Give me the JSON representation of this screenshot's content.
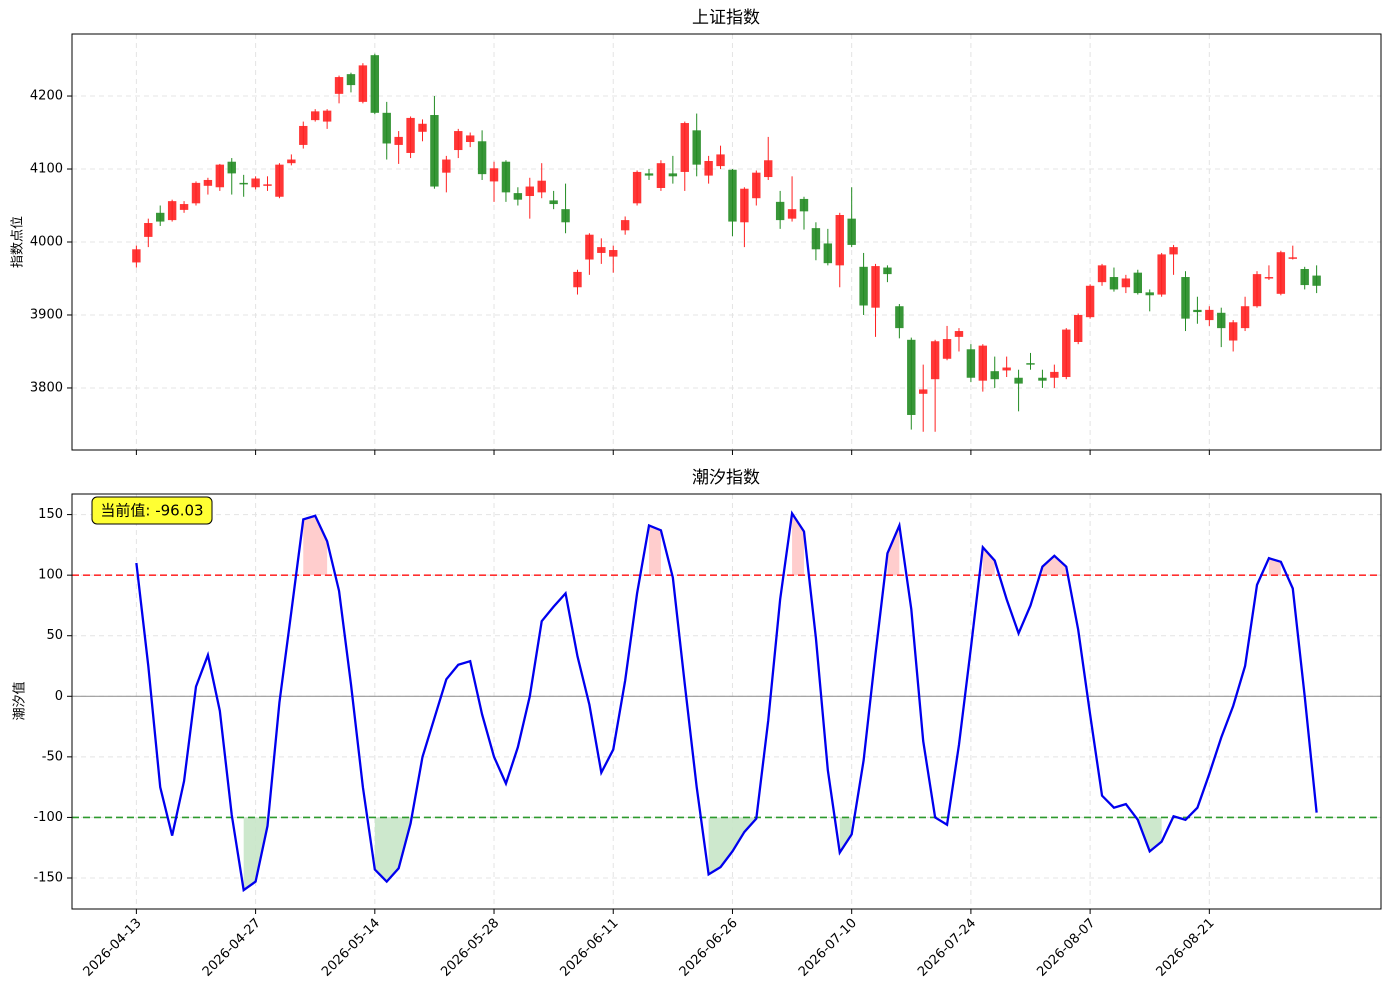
{
  "chart_data": [
    {
      "type": "candlestick",
      "title": "上证指数",
      "ylabel": "指数点位",
      "up_color": "#ff2020",
      "down_color": "#228b22",
      "open": [
        3972,
        4007,
        4040,
        4030,
        4044,
        4053,
        4077,
        4075,
        4110,
        4081,
        4075,
        4078,
        4062,
        4108,
        4133,
        4167,
        4165,
        4203,
        4230,
        4192,
        4256,
        4177,
        4133,
        4122,
        4151,
        4174,
        4095,
        4126,
        4137,
        4138,
        4083,
        4110,
        4067,
        4063,
        4068,
        4057,
        4045,
        3938,
        3976,
        3985,
        3980,
        4016,
        4053,
        4094,
        4074,
        4094,
        4096,
        4153,
        4091,
        4104,
        4099,
        4027,
        4060,
        4089,
        4055,
        4032,
        4059,
        4019,
        3998,
        3968,
        4032,
        3966,
        3910,
        3965,
        3912,
        3866,
        3792,
        3812,
        3840,
        3870,
        3853,
        3810,
        3823,
        3824,
        3814,
        3834,
        3814,
        3814,
        3815,
        3863,
        3897,
        3945,
        3952,
        3938,
        3958,
        3931,
        3928,
        3983,
        3952,
        3907,
        3893,
        3903,
        3865,
        3882,
        3912,
        3950,
        3929,
        3978,
        3963,
        3954
      ],
      "close": [
        3990,
        4026,
        4028,
        4056,
        4052,
        4081,
        4085,
        4106,
        4094,
        4080,
        4087,
        4079,
        4106,
        4113,
        4159,
        4179,
        4180,
        4226,
        4215,
        4242,
        4177,
        4135,
        4144,
        4170,
        4162,
        4076,
        4113,
        4152,
        4146,
        4093,
        4101,
        4068,
        4058,
        4076,
        4084,
        4052,
        4027,
        3959,
        4010,
        3993,
        3989,
        4030,
        4096,
        4091,
        4108,
        4090,
        4163,
        4106,
        4111,
        4120,
        4028,
        4073,
        4095,
        4112,
        4030,
        4045,
        4042,
        3990,
        3971,
        4037,
        3996,
        3913,
        3967,
        3956,
        3882,
        3763,
        3798,
        3864,
        3867,
        3878,
        3814,
        3858,
        3812,
        3828,
        3806,
        3832,
        3810,
        3822,
        3880,
        3900,
        3940,
        3968,
        3935,
        3950,
        3930,
        3927,
        3983,
        3993,
        3895,
        3904,
        3907,
        3882,
        3890,
        3912,
        3956,
        3952,
        3986,
        3979,
        3941,
        3940
      ],
      "high": [
        3995,
        4032,
        4050,
        4058,
        4056,
        4083,
        4088,
        4107,
        4115,
        4092,
        4090,
        4090,
        4108,
        4120,
        4165,
        4182,
        4182,
        4228,
        4232,
        4245,
        4258,
        4192,
        4152,
        4172,
        4168,
        4200,
        4118,
        4155,
        4150,
        4153,
        4110,
        4112,
        4075,
        4088,
        4108,
        4070,
        4080,
        3962,
        4012,
        4005,
        3995,
        4035,
        4098,
        4100,
        4112,
        4118,
        4165,
        4176,
        4118,
        4132,
        4100,
        4075,
        4098,
        4144,
        4070,
        4090,
        4062,
        4027,
        4018,
        4040,
        4075,
        3985,
        3970,
        3968,
        3915,
        3869,
        3832,
        3866,
        3885,
        3882,
        3860,
        3860,
        3843,
        3843,
        3825,
        3848,
        3825,
        3832,
        3882,
        3902,
        3942,
        3970,
        3965,
        3955,
        3962,
        3935,
        3985,
        3996,
        3960,
        3925,
        3912,
        3910,
        3893,
        3925,
        3960,
        3968,
        3988,
        3995,
        3966,
        3968
      ],
      "low": [
        3965,
        3993,
        4022,
        4028,
        4040,
        4050,
        4065,
        4070,
        4065,
        4062,
        4072,
        4070,
        4060,
        4105,
        4128,
        4165,
        4155,
        4190,
        4205,
        4190,
        4175,
        4113,
        4107,
        4115,
        4138,
        4073,
        4068,
        4115,
        4130,
        4085,
        4055,
        4055,
        4050,
        4032,
        4060,
        4045,
        4012,
        3928,
        3955,
        3970,
        3958,
        4010,
        4050,
        4085,
        4070,
        4080,
        4070,
        4090,
        4080,
        4100,
        4008,
        3993,
        4050,
        4085,
        4018,
        4028,
        4017,
        3975,
        3968,
        3938,
        3993,
        3900,
        3870,
        3945,
        3868,
        3743,
        3740,
        3740,
        3838,
        3850,
        3808,
        3795,
        3800,
        3815,
        3768,
        3825,
        3800,
        3800,
        3812,
        3860,
        3895,
        3940,
        3932,
        3930,
        3928,
        3905,
        3925,
        3955,
        3878,
        3888,
        3885,
        3856,
        3850,
        3878,
        3910,
        3948,
        3927,
        3976,
        3935,
        3930
      ],
      "xlim": [
        -5.4,
        104.4
      ],
      "ylim": [
        3715,
        4285
      ],
      "yticks": [
        3800,
        3900,
        4000,
        4100,
        4200
      ],
      "grid": true
    },
    {
      "type": "line",
      "title": "潮汐指数",
      "ylabel": "潮汐值",
      "color": "#0000ee",
      "annotation": "当前值: -96.03",
      "categories": [
        "2026-04-13",
        null,
        null,
        null,
        null,
        null,
        null,
        null,
        null,
        null,
        "2026-04-27",
        null,
        null,
        null,
        null,
        null,
        null,
        null,
        null,
        null,
        "2026-05-14",
        null,
        null,
        null,
        null,
        null,
        null,
        null,
        null,
        null,
        "2026-05-28",
        null,
        null,
        null,
        null,
        null,
        null,
        null,
        null,
        null,
        "2026-06-11",
        null,
        null,
        null,
        null,
        null,
        null,
        null,
        null,
        null,
        "2026-06-26",
        null,
        null,
        null,
        null,
        null,
        null,
        null,
        null,
        null,
        "2026-07-10",
        null,
        null,
        null,
        null,
        null,
        null,
        null,
        null,
        null,
        "2026-07-24",
        null,
        null,
        null,
        null,
        null,
        null,
        null,
        null,
        null,
        "2026-08-07",
        null,
        null,
        null,
        null,
        null,
        null,
        null,
        null,
        null,
        "2026-08-21",
        null,
        null,
        null,
        null,
        null,
        null,
        null,
        null,
        null
      ],
      "values": [
        110,
        25,
        -75,
        -115,
        -70,
        8,
        34,
        -12,
        -98,
        -160,
        -153,
        -107,
        -5,
        70,
        146,
        149,
        128,
        87,
        10,
        -75,
        -143,
        -153,
        -142,
        -105,
        -50,
        -18,
        14,
        26,
        29,
        -15,
        -50,
        -72,
        -42,
        0,
        62,
        74,
        85,
        33,
        -7,
        -63,
        -44,
        13,
        85,
        141,
        137,
        98,
        10,
        -75,
        -147,
        -141,
        -128,
        -112,
        -101,
        -20,
        80,
        151,
        136,
        48,
        -61,
        -129,
        -114,
        -53,
        35,
        118,
        141,
        72,
        -37,
        -100,
        -106,
        -40,
        40,
        123,
        112,
        80,
        52,
        75,
        107,
        116,
        107,
        55,
        -15,
        -82,
        -92,
        -89,
        -102,
        -128,
        -120,
        -99,
        -102,
        -92,
        -64,
        -34,
        -8,
        25,
        92,
        114,
        111,
        89,
        0,
        -96.03
      ],
      "hlines": [
        {
          "value": 100,
          "color": "#ff3030",
          "fill": "#ffc8c8"
        },
        {
          "value": -100,
          "color": "#2e9a2e",
          "fill": "#c8e6c8"
        },
        {
          "value": 0,
          "color": "#999999"
        }
      ],
      "xlim": [
        -5.4,
        104.4
      ],
      "ylim": [
        -175.6,
        167
      ],
      "yticks": [
        -150,
        -100,
        -50,
        0,
        50,
        100,
        150
      ],
      "grid": true
    }
  ]
}
